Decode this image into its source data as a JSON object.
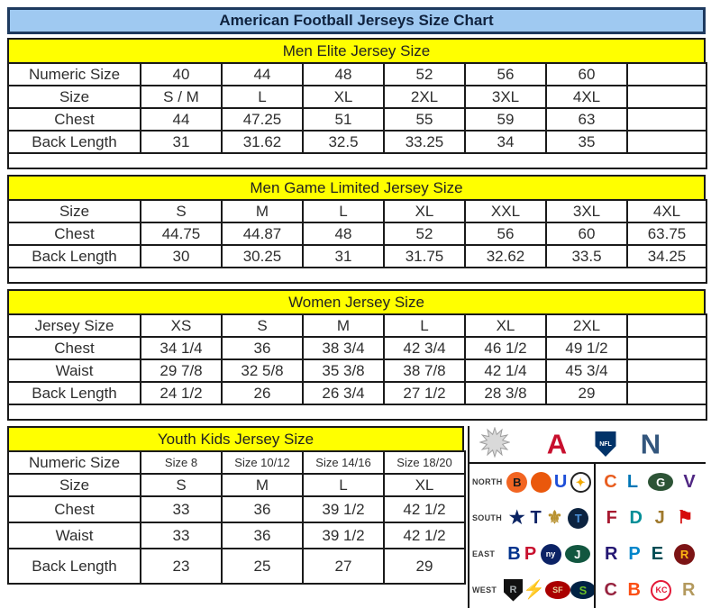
{
  "page": {
    "title": "American Football Jerseys Size Chart"
  },
  "chart_data": [
    {
      "type": "table",
      "title": "Men Elite Jersey Size",
      "rows": [
        {
          "label": "Numeric Size",
          "cells": [
            "40",
            "44",
            "48",
            "52",
            "56",
            "60",
            ""
          ]
        },
        {
          "label": "Size",
          "cells": [
            "S / M",
            "L",
            "XL",
            "2XL",
            "3XL",
            "4XL",
            ""
          ]
        },
        {
          "label": "Chest",
          "cells": [
            "44",
            "47.25",
            "51",
            "55",
            "59",
            "63",
            ""
          ]
        },
        {
          "label": "Back Length",
          "cells": [
            "31",
            "31.62",
            "32.5",
            "33.25",
            "34",
            "35",
            ""
          ]
        }
      ],
      "trailing_empty_row": true
    },
    {
      "type": "table",
      "title": "Men Game Limited Jersey Size",
      "rows": [
        {
          "label": "Size",
          "cells": [
            "S",
            "M",
            "L",
            "XL",
            "XXL",
            "3XL",
            "4XL"
          ]
        },
        {
          "label": "Chest",
          "cells": [
            "44.75",
            "44.87",
            "48",
            "52",
            "56",
            "60",
            "63.75"
          ]
        },
        {
          "label": "Back Length",
          "cells": [
            "30",
            "30.25",
            "31",
            "31.75",
            "32.62",
            "33.5",
            "34.25"
          ]
        }
      ],
      "trailing_empty_row": true
    },
    {
      "type": "table",
      "title": "Women Jersey Size",
      "rows": [
        {
          "label": "Jersey Size",
          "cells": [
            "XS",
            "S",
            "M",
            "L",
            "XL",
            "2XL",
            ""
          ]
        },
        {
          "label": "Chest",
          "cells": [
            "34 1/4",
            "36",
            "38 3/4",
            "42 3/4",
            "46 1/2",
            "49 1/2",
            ""
          ]
        },
        {
          "label": "Waist",
          "cells": [
            "29 7/8",
            "32 5/8",
            "35 3/8",
            "38 7/8",
            "42 1/4",
            "45 3/4",
            ""
          ]
        },
        {
          "label": "Back Length",
          "cells": [
            "24 1/2",
            "26",
            "26 3/4",
            "27 1/2",
            "28 3/8",
            "29",
            ""
          ]
        }
      ],
      "trailing_empty_row": true
    },
    {
      "type": "table",
      "title": "Youth Kids Jersey Size",
      "rows": [
        {
          "label": "Numeric Size",
          "cells": [
            "Size 8",
            "Size 10/12",
            "Size 14/16",
            "Size 18/20"
          ],
          "small_cells": true
        },
        {
          "label": "Size",
          "cells": [
            "S",
            "M",
            "L",
            "XL"
          ]
        },
        {
          "label": "Chest",
          "cells": [
            "33",
            "36",
            "39 1/2",
            "42 1/2"
          ]
        },
        {
          "label": "Waist",
          "cells": [
            "33",
            "36",
            "39 1/2",
            "42 1/2"
          ]
        },
        {
          "label": "Back Length",
          "cells": [
            "23",
            "25",
            "27",
            "29"
          ]
        }
      ],
      "trailing_empty_row": false
    }
  ],
  "logos_panel": {
    "conference_icons": [
      {
        "name": "starburst-icon",
        "type": "starburst",
        "color": "#d9d9d9"
      },
      {
        "name": "afc-logo",
        "type": "letter",
        "glyph": "A",
        "color": "#c8102e"
      },
      {
        "name": "nfl-shield-icon",
        "type": "shield",
        "glyph": "NFL",
        "color": "#013369"
      },
      {
        "name": "nfc-logo",
        "type": "letter",
        "glyph": "N",
        "color": "#33567d"
      }
    ],
    "divisions": [
      {
        "label": "NORTH",
        "afc": [
          {
            "team": "bengals",
            "glyph": "B",
            "bg": "#f26522",
            "fg": "#1a1a1a",
            "shape": "circle"
          },
          {
            "team": "browns",
            "glyph": "",
            "bg": "#ea580c",
            "fg": "#ffffff",
            "shape": "circle"
          },
          {
            "team": "colts",
            "glyph": "U",
            "fg": "#1d4ed8",
            "shape": "glyph"
          },
          {
            "team": "steelers",
            "glyph": "✦",
            "fg": "#f2a900",
            "shape": "ring"
          }
        ],
        "nfc": [
          {
            "team": "bears",
            "glyph": "C",
            "fg": "#e85d1f",
            "shape": "glyph"
          },
          {
            "team": "lions",
            "glyph": "L",
            "fg": "#0076b6",
            "shape": "glyph"
          },
          {
            "team": "packers",
            "glyph": "G",
            "bg": "#2d5436",
            "fg": "#ffffff",
            "shape": "oval"
          },
          {
            "team": "vikings",
            "glyph": "V",
            "fg": "#4f2683",
            "shape": "glyph"
          }
        ]
      },
      {
        "label": "SOUTH",
        "afc": [
          {
            "team": "cowboys",
            "glyph": "★",
            "fg": "#0a2362",
            "shape": "glyph"
          },
          {
            "team": "texans",
            "glyph": "T",
            "fg": "#0b2265",
            "shape": "glyph"
          },
          {
            "team": "saints",
            "glyph": "⚜",
            "fg": "#b8912f",
            "shape": "glyph"
          },
          {
            "team": "titans",
            "glyph": "T",
            "bg": "#0c2340",
            "fg": "#4b92db",
            "shape": "circle"
          }
        ],
        "nfc": [
          {
            "team": "falcons",
            "glyph": "F",
            "fg": "#a71930",
            "shape": "glyph"
          },
          {
            "team": "dolphins",
            "glyph": "D",
            "fg": "#008e97",
            "shape": "glyph"
          },
          {
            "team": "jaguars",
            "glyph": "J",
            "fg": "#9f792c",
            "shape": "glyph"
          },
          {
            "team": "buccaneers",
            "glyph": "⚑",
            "fg": "#d50a0a",
            "shape": "glyph"
          }
        ]
      },
      {
        "label": "EAST",
        "afc": [
          {
            "team": "bills",
            "glyph": "B",
            "fg": "#00338d",
            "shape": "glyph"
          },
          {
            "team": "patriots",
            "glyph": "P",
            "fg": "#c8102e",
            "shape": "glyph"
          },
          {
            "team": "giants",
            "glyph": "ny",
            "bg": "#0b2265",
            "fg": "#ffffff",
            "shape": "circle",
            "small": true
          },
          {
            "team": "jets",
            "glyph": "J",
            "bg": "#125740",
            "fg": "#ffffff",
            "shape": "oval"
          }
        ],
        "nfc": [
          {
            "team": "ravens",
            "glyph": "R",
            "fg": "#241773",
            "shape": "glyph"
          },
          {
            "team": "panthers",
            "glyph": "P",
            "fg": "#0085ca",
            "shape": "glyph"
          },
          {
            "team": "eagles",
            "glyph": "E",
            "fg": "#004c54",
            "shape": "glyph"
          },
          {
            "team": "redskins",
            "glyph": "R",
            "bg": "#7c1415",
            "fg": "#ffb612",
            "shape": "circle"
          }
        ]
      },
      {
        "label": "WEST",
        "afc": [
          {
            "team": "raiders",
            "glyph": "R",
            "bg": "#111111",
            "fg": "#a5acaf",
            "shape": "shield"
          },
          {
            "team": "chargers",
            "glyph": "⚡",
            "fg": "#ffc20e",
            "shape": "glyph"
          },
          {
            "team": "49ers",
            "glyph": "SF",
            "bg": "#aa0000",
            "fg": "#e6d19a",
            "shape": "oval",
            "small": true
          },
          {
            "team": "seahawks",
            "glyph": "S",
            "bg": "#002244",
            "fg": "#69be28",
            "shape": "oval"
          }
        ],
        "nfc": [
          {
            "team": "cardinals",
            "glyph": "C",
            "fg": "#97233f",
            "shape": "glyph"
          },
          {
            "team": "broncos",
            "glyph": "B",
            "fg": "#fb4f14",
            "shape": "glyph"
          },
          {
            "team": "chiefs",
            "glyph": "KC",
            "bg": "#ffffff",
            "fg": "#e31837",
            "shape": "ring",
            "border": "#e31837",
            "small": true
          },
          {
            "team": "rams",
            "glyph": "R",
            "fg": "#b3995d",
            "shape": "glyph"
          }
        ]
      }
    ]
  },
  "colors": {
    "title_bg": "#9fc9f1",
    "title_border": "#1e3a5f",
    "section_header_bg": "#ffff00",
    "table_border": "#1a1a1a",
    "afc_red": "#c8102e",
    "nfc_blue": "#33567d",
    "nfl_shield_blue": "#013369"
  }
}
